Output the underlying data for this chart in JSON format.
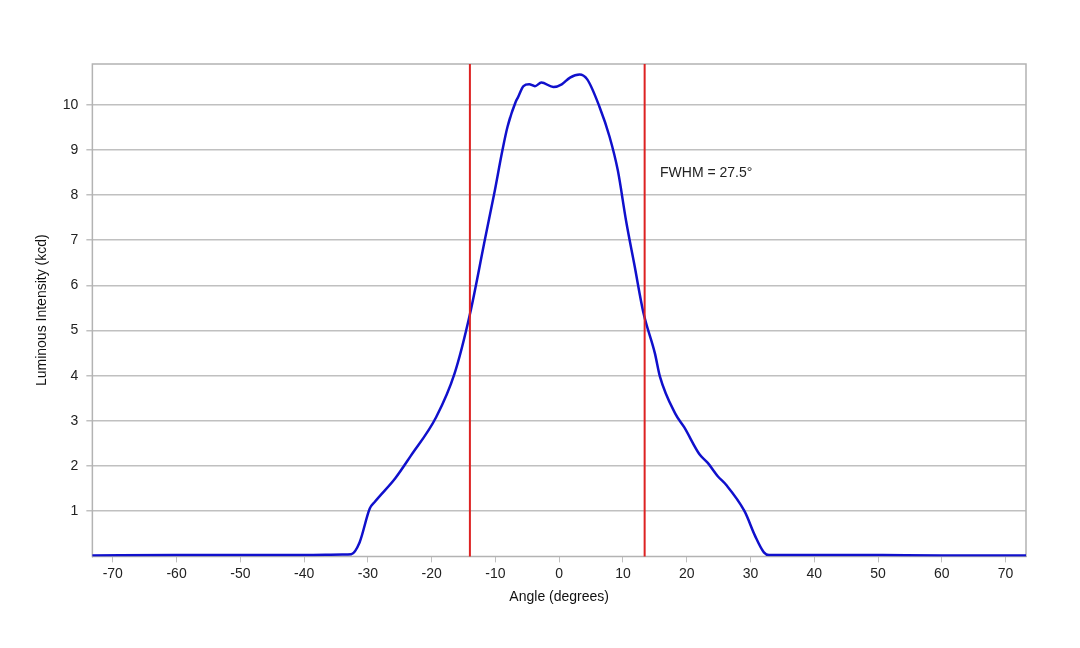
{
  "chart_data": {
    "type": "line",
    "xlabel": "Angle (degrees)",
    "ylabel": "Luminous Intensity (kcd)",
    "xlim": [
      -73.2,
      73.2
    ],
    "ylim": [
      0,
      10.9
    ],
    "xticks": [
      -70,
      -60,
      -50,
      -40,
      -30,
      -20,
      -10,
      0,
      10,
      20,
      30,
      40,
      50,
      60,
      70
    ],
    "yticks": [
      1,
      2,
      3,
      4,
      5,
      6,
      7,
      8,
      9,
      10
    ],
    "grid": "y",
    "legend": false,
    "marker": "none",
    "line_style": "solid",
    "series": [
      {
        "color": "#1010cc",
        "x": [
          -73.2,
          -60,
          -50,
          -40,
          -34,
          -32.6,
          -31.3,
          -29.7,
          -28.9,
          -25.7,
          -23.3,
          -19.3,
          -16.4,
          -14.0,
          -11.6,
          -10.2,
          -8.9,
          -8.1,
          -6.8,
          -6.5,
          -5.6,
          -4.7,
          -3.8,
          -2.8,
          -0.9,
          0.4,
          1.7,
          3.2,
          4.4,
          6.3,
          7.9,
          9.2,
          10.5,
          11.8,
          13.2,
          15.0,
          15.8,
          18.2,
          19.6,
          22.0,
          23.3,
          24.9,
          26.2,
          29.1,
          30.7,
          32.1,
          32.9,
          40,
          50,
          60,
          73.2
        ],
        "values": [
          0.02,
          0.03,
          0.03,
          0.03,
          0.04,
          0.05,
          0.31,
          1.06,
          1.21,
          1.73,
          2.22,
          3.08,
          4.05,
          5.36,
          7.05,
          8.02,
          8.99,
          9.51,
          10.07,
          10.15,
          10.41,
          10.45,
          10.41,
          10.49,
          10.39,
          10.45,
          10.6,
          10.67,
          10.56,
          9.96,
          9.29,
          8.54,
          7.42,
          6.45,
          5.4,
          4.5,
          3.98,
          3.16,
          2.86,
          2.26,
          2.07,
          1.77,
          1.58,
          0.99,
          0.46,
          0.09,
          0.03,
          0.03,
          0.03,
          0.02,
          0.02
        ]
      }
    ],
    "ref_lines": [
      {
        "axis": "x",
        "value": -14.0,
        "color": "#dd2222"
      },
      {
        "axis": "x",
        "value": 13.4,
        "color": "#dd2222"
      }
    ],
    "annotations": [
      "FWHM = 27.5°"
    ]
  }
}
